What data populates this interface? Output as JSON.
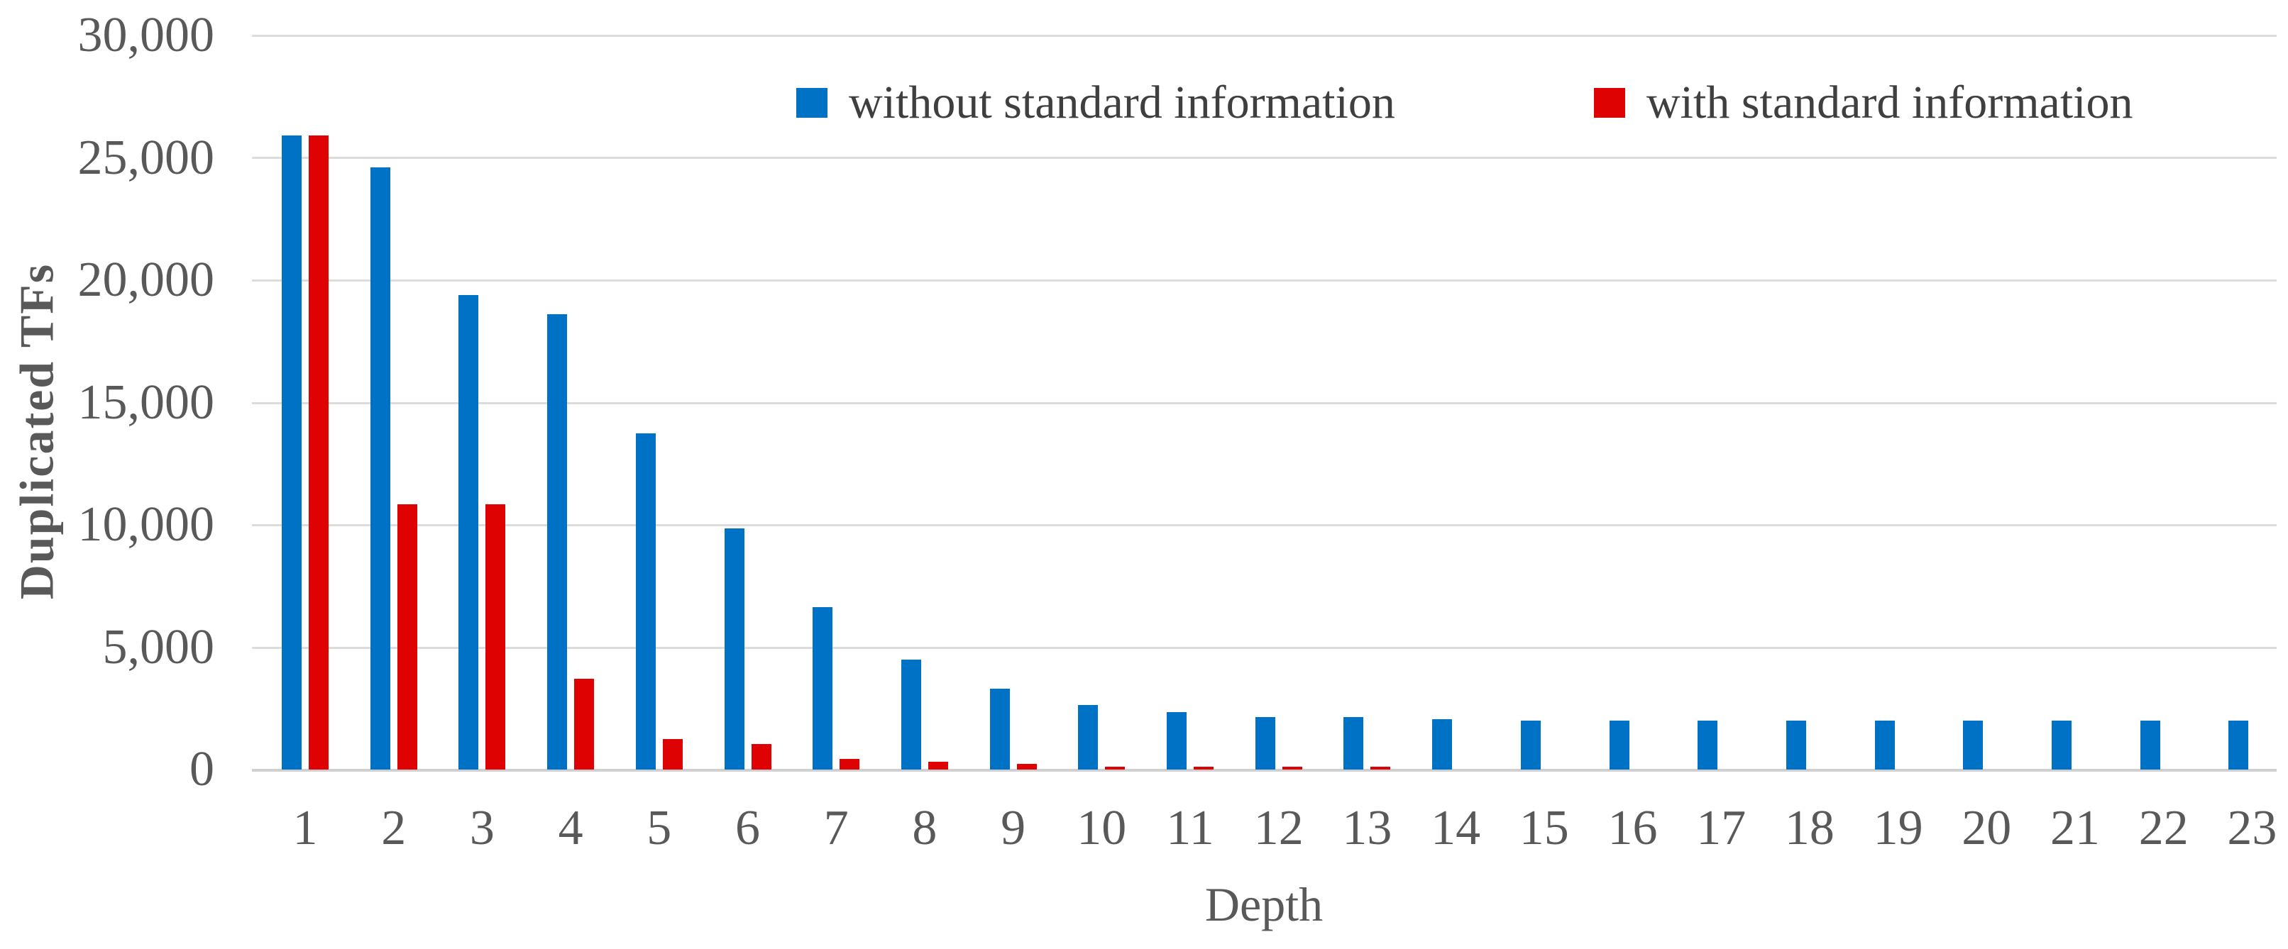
{
  "chart_data": {
    "type": "bar",
    "title": "",
    "xlabel": "Depth",
    "ylabel": "Duplicated TFs",
    "ylim": [
      0,
      30000
    ],
    "y_tick_interval": 5000,
    "grid": true,
    "legend_position": "top-center",
    "y_ticks": [
      {
        "value": 30000,
        "label": "30,000"
      },
      {
        "value": 25000,
        "label": "25,000"
      },
      {
        "value": 20000,
        "label": "20,000"
      },
      {
        "value": 15000,
        "label": "15,000"
      },
      {
        "value": 10000,
        "label": "10,000"
      },
      {
        "value": 5000,
        "label": "5,000"
      },
      {
        "value": 0,
        "label": "0"
      }
    ],
    "categories": [
      "1",
      "2",
      "3",
      "4",
      "5",
      "6",
      "7",
      "8",
      "9",
      "10",
      "11",
      "12",
      "13",
      "14",
      "15",
      "16",
      "17",
      "18",
      "19",
      "20",
      "21",
      "22",
      "23"
    ],
    "series": [
      {
        "name": "without standard information",
        "color": "#0072C6",
        "values": [
          25900,
          24600,
          19400,
          18600,
          13750,
          9850,
          6650,
          4500,
          3300,
          2650,
          2350,
          2150,
          2150,
          2050,
          2000,
          2000,
          2000,
          2000,
          2000,
          2000,
          2000,
          2000,
          2000
        ]
      },
      {
        "name": "with standard information",
        "color": "#DF0202",
        "values": [
          25900,
          10850,
          10850,
          3700,
          1250,
          1050,
          430,
          330,
          220,
          130,
          110,
          120,
          110,
          0,
          0,
          0,
          0,
          0,
          0,
          0,
          0,
          0,
          0
        ]
      }
    ]
  },
  "colors": {
    "gridline": "#DCDCDC",
    "axis_line": "#D0D0D0",
    "tick_text": "#595959",
    "title_text": "#595959",
    "legend_text": "#3F3F3F",
    "background": "#FFFFFF"
  }
}
